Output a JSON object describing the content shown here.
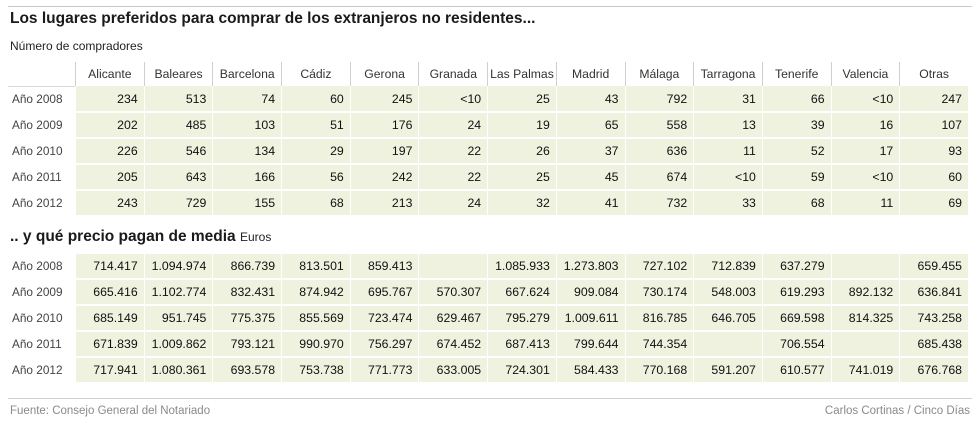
{
  "title": "Los lugares preferidos para comprar de los extranjeros no residentes...",
  "subtitle": "Número de compradores",
  "title2": ".. y qué precio pagan de media",
  "title2_unit": "Euros",
  "columns": [
    "Alicante",
    "Baleares",
    "Barcelona",
    "Cádiz",
    "Gerona",
    "Granada",
    "Las Palmas",
    "Madrid",
    "Málaga",
    "Tarragona",
    "Tenerife",
    "Valencia",
    "Otras"
  ],
  "buyers": [
    {
      "year": "Año 2008",
      "values": [
        "234",
        "513",
        "74",
        "60",
        "245",
        "<10",
        "25",
        "43",
        "792",
        "31",
        "66",
        "<10",
        "247"
      ]
    },
    {
      "year": "Año 2009",
      "values": [
        "202",
        "485",
        "103",
        "51",
        "176",
        "24",
        "19",
        "65",
        "558",
        "13",
        "39",
        "16",
        "107"
      ]
    },
    {
      "year": "Año 2010",
      "values": [
        "226",
        "546",
        "134",
        "29",
        "197",
        "22",
        "26",
        "37",
        "636",
        "11",
        "52",
        "17",
        "93"
      ]
    },
    {
      "year": "Año 2011",
      "values": [
        "205",
        "643",
        "166",
        "56",
        "242",
        "22",
        "25",
        "45",
        "674",
        "<10",
        "59",
        "<10",
        "60"
      ]
    },
    {
      "year": "Año 2012",
      "values": [
        "243",
        "729",
        "155",
        "68",
        "213",
        "24",
        "32",
        "41",
        "732",
        "33",
        "68",
        "11",
        "69"
      ]
    }
  ],
  "prices": [
    {
      "year": "Año 2008",
      "values": [
        "714.417",
        "1.094.974",
        "866.739",
        "813.501",
        "859.413",
        "",
        "1.085.933",
        "1.273.803",
        "727.102",
        "712.839",
        "637.279",
        "",
        "659.455"
      ]
    },
    {
      "year": "Año 2009",
      "values": [
        "665.416",
        "1.102.774",
        "832.431",
        "874.942",
        "695.767",
        "570.307",
        "667.624",
        "909.084",
        "730.174",
        "548.003",
        "619.293",
        "892.132",
        "636.841"
      ]
    },
    {
      "year": "Año 2010",
      "values": [
        "685.149",
        "951.745",
        "775.375",
        "855.569",
        "723.474",
        "629.467",
        "795.279",
        "1.009.611",
        "816.785",
        "646.705",
        "669.598",
        "814.325",
        "743.258"
      ]
    },
    {
      "year": "Año 2011",
      "values": [
        "671.839",
        "1.009.862",
        "793.121",
        "990.970",
        "756.297",
        "674.452",
        "687.413",
        "799.644",
        "744.354",
        "",
        "706.554",
        "",
        "685.438"
      ]
    },
    {
      "year": "Año 2012",
      "values": [
        "717.941",
        "1.080.361",
        "693.578",
        "753.738",
        "771.773",
        "633.005",
        "724.301",
        "584.433",
        "770.168",
        "591.207",
        "610.577",
        "741.019",
        "676.768"
      ]
    }
  ],
  "footer": {
    "source": "Fuente: Consejo General del Notariado",
    "credit": "Carlos Cortinas / Cinco Días"
  }
}
